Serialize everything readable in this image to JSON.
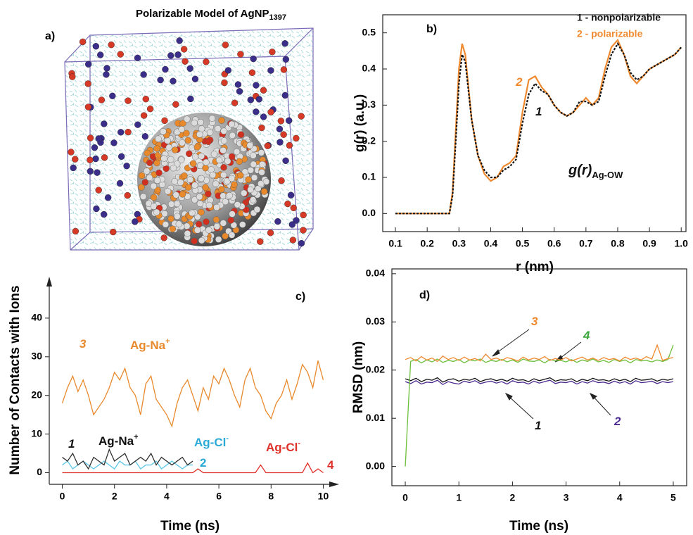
{
  "chart_data": [
    {
      "type": "render",
      "label": "a)",
      "title": "Polarizable Model of AgNP",
      "title_sub": "1397"
    },
    {
      "type": "line",
      "label": "b)",
      "xlabel": "r (nm)",
      "ylabel": "g(r) (a.u.)",
      "box": true,
      "x": [
        0.1,
        0.2,
        0.26,
        0.27,
        0.28,
        0.29,
        0.3,
        0.31,
        0.32,
        0.33,
        0.34,
        0.36,
        0.38,
        0.4,
        0.42,
        0.44,
        0.46,
        0.48,
        0.5,
        0.52,
        0.54,
        0.56,
        0.58,
        0.6,
        0.62,
        0.64,
        0.66,
        0.68,
        0.7,
        0.72,
        0.74,
        0.76,
        0.78,
        0.8,
        0.82,
        0.84,
        0.86,
        0.88,
        0.9,
        0.92,
        0.94,
        0.96,
        0.98,
        1.0
      ],
      "series": [
        {
          "name": "1 - nonpolarizable",
          "color": "#111111",
          "dash": true,
          "values": [
            0,
            0,
            0,
            0,
            0.05,
            0.2,
            0.36,
            0.44,
            0.42,
            0.34,
            0.26,
            0.16,
            0.12,
            0.1,
            0.1,
            0.12,
            0.13,
            0.15,
            0.25,
            0.33,
            0.36,
            0.34,
            0.33,
            0.3,
            0.28,
            0.27,
            0.28,
            0.31,
            0.31,
            0.3,
            0.31,
            0.38,
            0.44,
            0.47,
            0.44,
            0.39,
            0.37,
            0.38,
            0.4,
            0.41,
            0.42,
            0.43,
            0.44,
            0.46
          ]
        },
        {
          "name": "2 - polarizable",
          "color": "#f08a30",
          "dash": false,
          "values": [
            0,
            0,
            0,
            0,
            0.06,
            0.23,
            0.4,
            0.47,
            0.44,
            0.35,
            0.26,
            0.16,
            0.11,
            0.09,
            0.1,
            0.13,
            0.14,
            0.16,
            0.28,
            0.37,
            0.38,
            0.35,
            0.33,
            0.3,
            0.28,
            0.27,
            0.28,
            0.3,
            0.32,
            0.3,
            0.32,
            0.4,
            0.46,
            0.48,
            0.44,
            0.38,
            0.36,
            0.38,
            0.4,
            0.41,
            0.42,
            0.43,
            0.44,
            0.46
          ]
        }
      ],
      "xlim": [
        0.06,
        1.015
      ],
      "ylim": [
        -0.05,
        0.55
      ],
      "xticks": [
        0.1,
        0.2,
        0.3,
        0.4,
        0.5,
        0.6,
        0.7,
        0.8,
        0.9,
        {
          "value": 1,
          "label": "1.0"
        }
      ],
      "yticks": [
        {
          "value": 0,
          "label": "0.0"
        },
        0.1,
        0.2,
        0.3,
        0.4,
        0.5
      ],
      "annotations": [
        {
          "text": "2",
          "color": "#f08a30"
        },
        {
          "text": "1",
          "color": "#111111"
        },
        {
          "text": "g(r)",
          "sub": "Ag-OW",
          "color": "#111111"
        }
      ]
    },
    {
      "type": "line",
      "label": "c)",
      "xlabel": "Time (ns)",
      "ylabel": "Number of Contacts with Ions",
      "box": false,
      "series": [
        {
          "color": "#e8892c",
          "x": [
            0,
            0.2,
            0.4,
            0.6,
            0.8,
            1,
            1.2,
            1.4,
            1.6,
            1.8,
            2,
            2.2,
            2.4,
            2.6,
            2.8,
            3,
            3.2,
            3.4,
            3.6,
            3.8,
            4,
            4.2,
            4.4,
            4.6,
            4.8,
            5,
            5.2,
            5.4,
            5.6,
            5.8,
            6,
            6.2,
            6.4,
            6.6,
            6.8,
            7,
            7.2,
            7.4,
            7.6,
            7.8,
            8,
            8.2,
            8.4,
            8.6,
            8.8,
            9,
            9.2,
            9.4,
            9.6,
            9.8,
            10
          ],
          "values": [
            18,
            22,
            25,
            21,
            24,
            20,
            15,
            17,
            19,
            22,
            26,
            24,
            27,
            22,
            20,
            15,
            23,
            25,
            19,
            17,
            15,
            12,
            18,
            22,
            24,
            20,
            16,
            22,
            19,
            25,
            23,
            27,
            24,
            20,
            17,
            24,
            27,
            22,
            20,
            16,
            14,
            18,
            20,
            24,
            19,
            23,
            28,
            26,
            22,
            29,
            24
          ]
        },
        {
          "color": "#5ec8e6",
          "x": [
            0,
            0.2,
            0.4,
            0.6,
            0.8,
            1,
            1.2,
            1.4,
            1.6,
            1.8,
            2,
            2.2,
            2.4,
            2.6,
            2.8,
            3,
            3.2,
            3.4,
            3.6,
            3.8,
            4,
            4.2,
            4.4,
            4.6,
            4.8,
            5
          ],
          "values": [
            2,
            3,
            1,
            2,
            3,
            2,
            1,
            2,
            3,
            2,
            1,
            3,
            2,
            2,
            3,
            1,
            2,
            2,
            3,
            1,
            2,
            3,
            2,
            1,
            2,
            2
          ]
        },
        {
          "color": "#333333",
          "x": [
            0,
            0.2,
            0.4,
            0.6,
            0.8,
            1,
            1.2,
            1.4,
            1.6,
            1.8,
            2,
            2.2,
            2.4,
            2.6,
            2.8,
            3,
            3.2,
            3.4,
            3.6,
            3.8,
            4,
            4.2,
            4.4,
            4.6,
            4.8,
            5
          ],
          "values": [
            4,
            3,
            5,
            2,
            3,
            1,
            4,
            3,
            2,
            6,
            3,
            4,
            5,
            2,
            3,
            4,
            3,
            5,
            2,
            4,
            3,
            2,
            3,
            4,
            2,
            3
          ]
        },
        {
          "color": "#e0302a",
          "x": [
            0,
            0.2,
            0.4,
            0.6,
            0.8,
            1,
            1.2,
            1.4,
            1.6,
            1.8,
            2,
            2.2,
            2.4,
            2.6,
            2.8,
            3,
            3.2,
            3.4,
            3.6,
            3.8,
            4,
            4.2,
            4.4,
            4.6,
            4.8,
            5,
            5.2,
            5.4,
            5.6,
            5.8,
            6,
            6.2,
            6.4,
            6.6,
            6.8,
            7,
            7.2,
            7.4,
            7.6,
            7.8,
            8,
            8.2,
            8.4,
            8.6,
            8.8,
            9,
            9.2,
            9.4,
            9.6,
            9.8,
            10
          ],
          "values": [
            0,
            0,
            0,
            0,
            0,
            0,
            0,
            0,
            0,
            0,
            0,
            0,
            0,
            0,
            0,
            0,
            0,
            0,
            0,
            0,
            0,
            0,
            0,
            0,
            0,
            0,
            1,
            0,
            0,
            0,
            0,
            0,
            0,
            0,
            0,
            0,
            0,
            0,
            2,
            0,
            0,
            0,
            0,
            0,
            0,
            0,
            0,
            2.5,
            0,
            1,
            0
          ]
        }
      ],
      "xlim": [
        -0.5,
        10.5
      ],
      "ylim": [
        -3,
        50
      ],
      "xticks": [
        0,
        2,
        4,
        6,
        8,
        10
      ],
      "yticks": [
        0,
        10,
        20,
        30,
        40
      ],
      "annotations": [
        {
          "text": "3",
          "color": "#e8892c"
        },
        {
          "text": "Ag-Na",
          "sup": "+",
          "color": "#e8892c"
        },
        {
          "text": "1",
          "color": "#111111"
        },
        {
          "text": "Ag-Na",
          "sup": "+",
          "color": "#111111"
        },
        {
          "text": "Ag-Cl",
          "sup": "-",
          "color": "#29a9d6"
        },
        {
          "text": "2",
          "color": "#29a9d6"
        },
        {
          "text": "Ag-Cl",
          "sup": "-",
          "color": "#e0302a"
        },
        {
          "text": "4",
          "color": "#e0302a"
        }
      ]
    },
    {
      "type": "line",
      "label": "d)",
      "xlabel": "Time (ns)",
      "ylabel": "RMSD (nm)",
      "box": true,
      "x": [
        0,
        0.1,
        0.2,
        0.3,
        0.4,
        0.5,
        0.6,
        0.7,
        0.8,
        0.9,
        1,
        1.1,
        1.2,
        1.3,
        1.4,
        1.5,
        1.6,
        1.7,
        1.8,
        1.9,
        2,
        2.1,
        2.2,
        2.3,
        2.4,
        2.5,
        2.6,
        2.7,
        2.8,
        2.9,
        3,
        3.1,
        3.2,
        3.3,
        3.4,
        3.5,
        3.6,
        3.7,
        3.8,
        3.9,
        4,
        4.1,
        4.2,
        4.3,
        4.4,
        4.5,
        4.6,
        4.7,
        4.8,
        4.9,
        5
      ],
      "series": [
        {
          "color": "#f08a30",
          "values": [
            0.0222,
            0.0226,
            0.0219,
            0.0228,
            0.0221,
            0.0225,
            0.0218,
            0.0229,
            0.0222,
            0.0226,
            0.022,
            0.0227,
            0.0221,
            0.0224,
            0.0219,
            0.0233,
            0.0222,
            0.0225,
            0.022,
            0.0226,
            0.0223,
            0.0219,
            0.0227,
            0.0221,
            0.0225,
            0.0222,
            0.0228,
            0.022,
            0.0224,
            0.0221,
            0.0226,
            0.0219,
            0.0223,
            0.0227,
            0.0221,
            0.0225,
            0.022,
            0.0226,
            0.0222,
            0.0224,
            0.0219,
            0.0227,
            0.0222,
            0.0225,
            0.0221,
            0.0228,
            0.0223,
            0.0252,
            0.022,
            0.0224,
            0.0226
          ]
        },
        {
          "color": "#6cbf3a",
          "values": [
            0,
            0.0218,
            0.0222,
            0.0215,
            0.0221,
            0.0217,
            0.0223,
            0.0216,
            0.022,
            0.0218,
            0.0222,
            0.0215,
            0.0221,
            0.0219,
            0.0223,
            0.0216,
            0.022,
            0.0218,
            0.0222,
            0.0217,
            0.0221,
            0.0216,
            0.0223,
            0.0219,
            0.0218,
            0.0221,
            0.0215,
            0.0222,
            0.0219,
            0.022,
            0.0217,
            0.0222,
            0.0216,
            0.0221,
            0.0218,
            0.0223,
            0.0217,
            0.022,
            0.0216,
            0.0222,
            0.0218,
            0.0221,
            0.0215,
            0.0222,
            0.0219,
            0.022,
            0.0217,
            0.0221,
            0.0218,
            0.0222,
            0.0252
          ]
        },
        {
          "color": "#111111",
          "values": [
            0.0182,
            0.0178,
            0.0183,
            0.0176,
            0.0181,
            0.0179,
            0.0184,
            0.0175,
            0.018,
            0.0182,
            0.0177,
            0.0181,
            0.0179,
            0.0183,
            0.0176,
            0.018,
            0.0182,
            0.0178,
            0.0181,
            0.0177,
            0.0183,
            0.0179,
            0.018,
            0.0176,
            0.0182,
            0.0178,
            0.0181,
            0.0184,
            0.0177,
            0.018,
            0.0179,
            0.0182,
            0.0176,
            0.0181,
            0.0178,
            0.0183,
            0.0179,
            0.018,
            0.0177,
            0.0182,
            0.0178,
            0.0181,
            0.0176,
            0.0183,
            0.0179,
            0.018,
            0.0182,
            0.0177,
            0.0181,
            0.0179,
            0.0182
          ]
        },
        {
          "color": "#4b2a8f",
          "values": [
            0.0176,
            0.0172,
            0.0178,
            0.0171,
            0.0175,
            0.0174,
            0.0179,
            0.017,
            0.0176,
            0.0173,
            0.0171,
            0.0177,
            0.0174,
            0.0178,
            0.0172,
            0.0175,
            0.0177,
            0.0173,
            0.0176,
            0.0171,
            0.0178,
            0.0174,
            0.0175,
            0.0171,
            0.0177,
            0.0173,
            0.0176,
            0.0179,
            0.0172,
            0.0175,
            0.0174,
            0.0177,
            0.0171,
            0.0176,
            0.0173,
            0.0178,
            0.0174,
            0.0175,
            0.0172,
            0.0177,
            0.0173,
            0.0176,
            0.0171,
            0.0178,
            0.0174,
            0.0175,
            0.0177,
            0.0172,
            0.0176,
            0.0174,
            0.0176
          ]
        }
      ],
      "xlim": [
        -0.25,
        5.25
      ],
      "ylim": [
        -0.004,
        0.041
      ],
      "xticks": [
        0,
        1,
        2,
        3,
        4,
        5
      ],
      "yticks": [
        {
          "value": 0,
          "label": "0.00"
        },
        0.01,
        0.02,
        0.03,
        0.04
      ],
      "annotations": [
        {
          "text": "3",
          "color": "#f08a30"
        },
        {
          "text": "4",
          "color": "#3aa53a"
        },
        {
          "text": "1",
          "color": "#111111"
        },
        {
          "text": "2",
          "color": "#4b2a8f"
        }
      ]
    }
  ]
}
